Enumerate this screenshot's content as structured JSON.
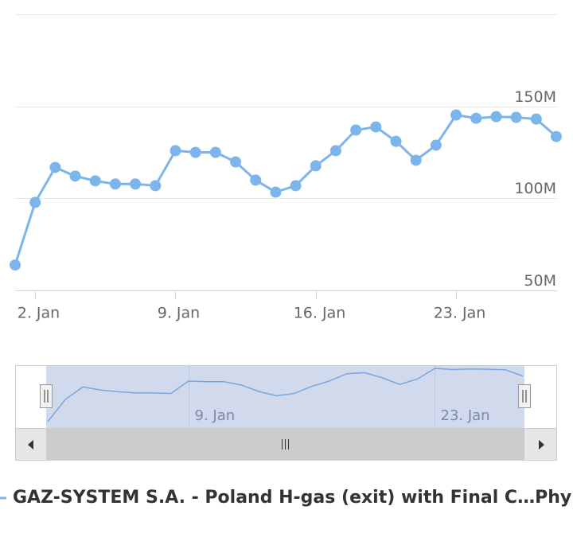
{
  "chart_data": {
    "type": "line",
    "x": [
      1,
      2,
      3,
      4,
      5,
      6,
      7,
      8,
      9,
      10,
      11,
      12,
      13,
      14,
      15,
      16,
      17,
      18,
      19,
      20,
      21,
      22,
      23,
      24,
      25,
      26,
      27,
      28
    ],
    "xlim": [
      1,
      28
    ],
    "xticks": [
      {
        "value": 2,
        "label": "2. Jan"
      },
      {
        "value": 9,
        "label": "9. Jan"
      },
      {
        "value": 16,
        "label": "16. Jan"
      },
      {
        "value": 23,
        "label": "23. Jan"
      }
    ],
    "ylim": [
      50000000,
      200000000
    ],
    "yticks": [
      {
        "value": 50000000,
        "label": "50M"
      },
      {
        "value": 100000000,
        "label": "100M"
      },
      {
        "value": 150000000,
        "label": "150M"
      }
    ],
    "grid": true,
    "series": [
      {
        "name": "GAZ-SYSTEM S.A. - Poland H-gas (exit) with Final C…Phy",
        "color": "#7cb5ec",
        "values": [
          63800000,
          97800000,
          116800000,
          112100000,
          109500000,
          107800000,
          107800000,
          106900000,
          125900000,
          125000000,
          125000000,
          119800000,
          109900000,
          103400000,
          106900000,
          117700000,
          125900000,
          137100000,
          138800000,
          131000000,
          120700000,
          128900000,
          145300000,
          143500000,
          144400000,
          144000000,
          143100000,
          133600000
        ]
      }
    ],
    "navigator": {
      "xticks": [
        {
          "value": 9,
          "label": "9. Jan"
        },
        {
          "value": 23,
          "label": "23. Jan"
        }
      ]
    }
  }
}
